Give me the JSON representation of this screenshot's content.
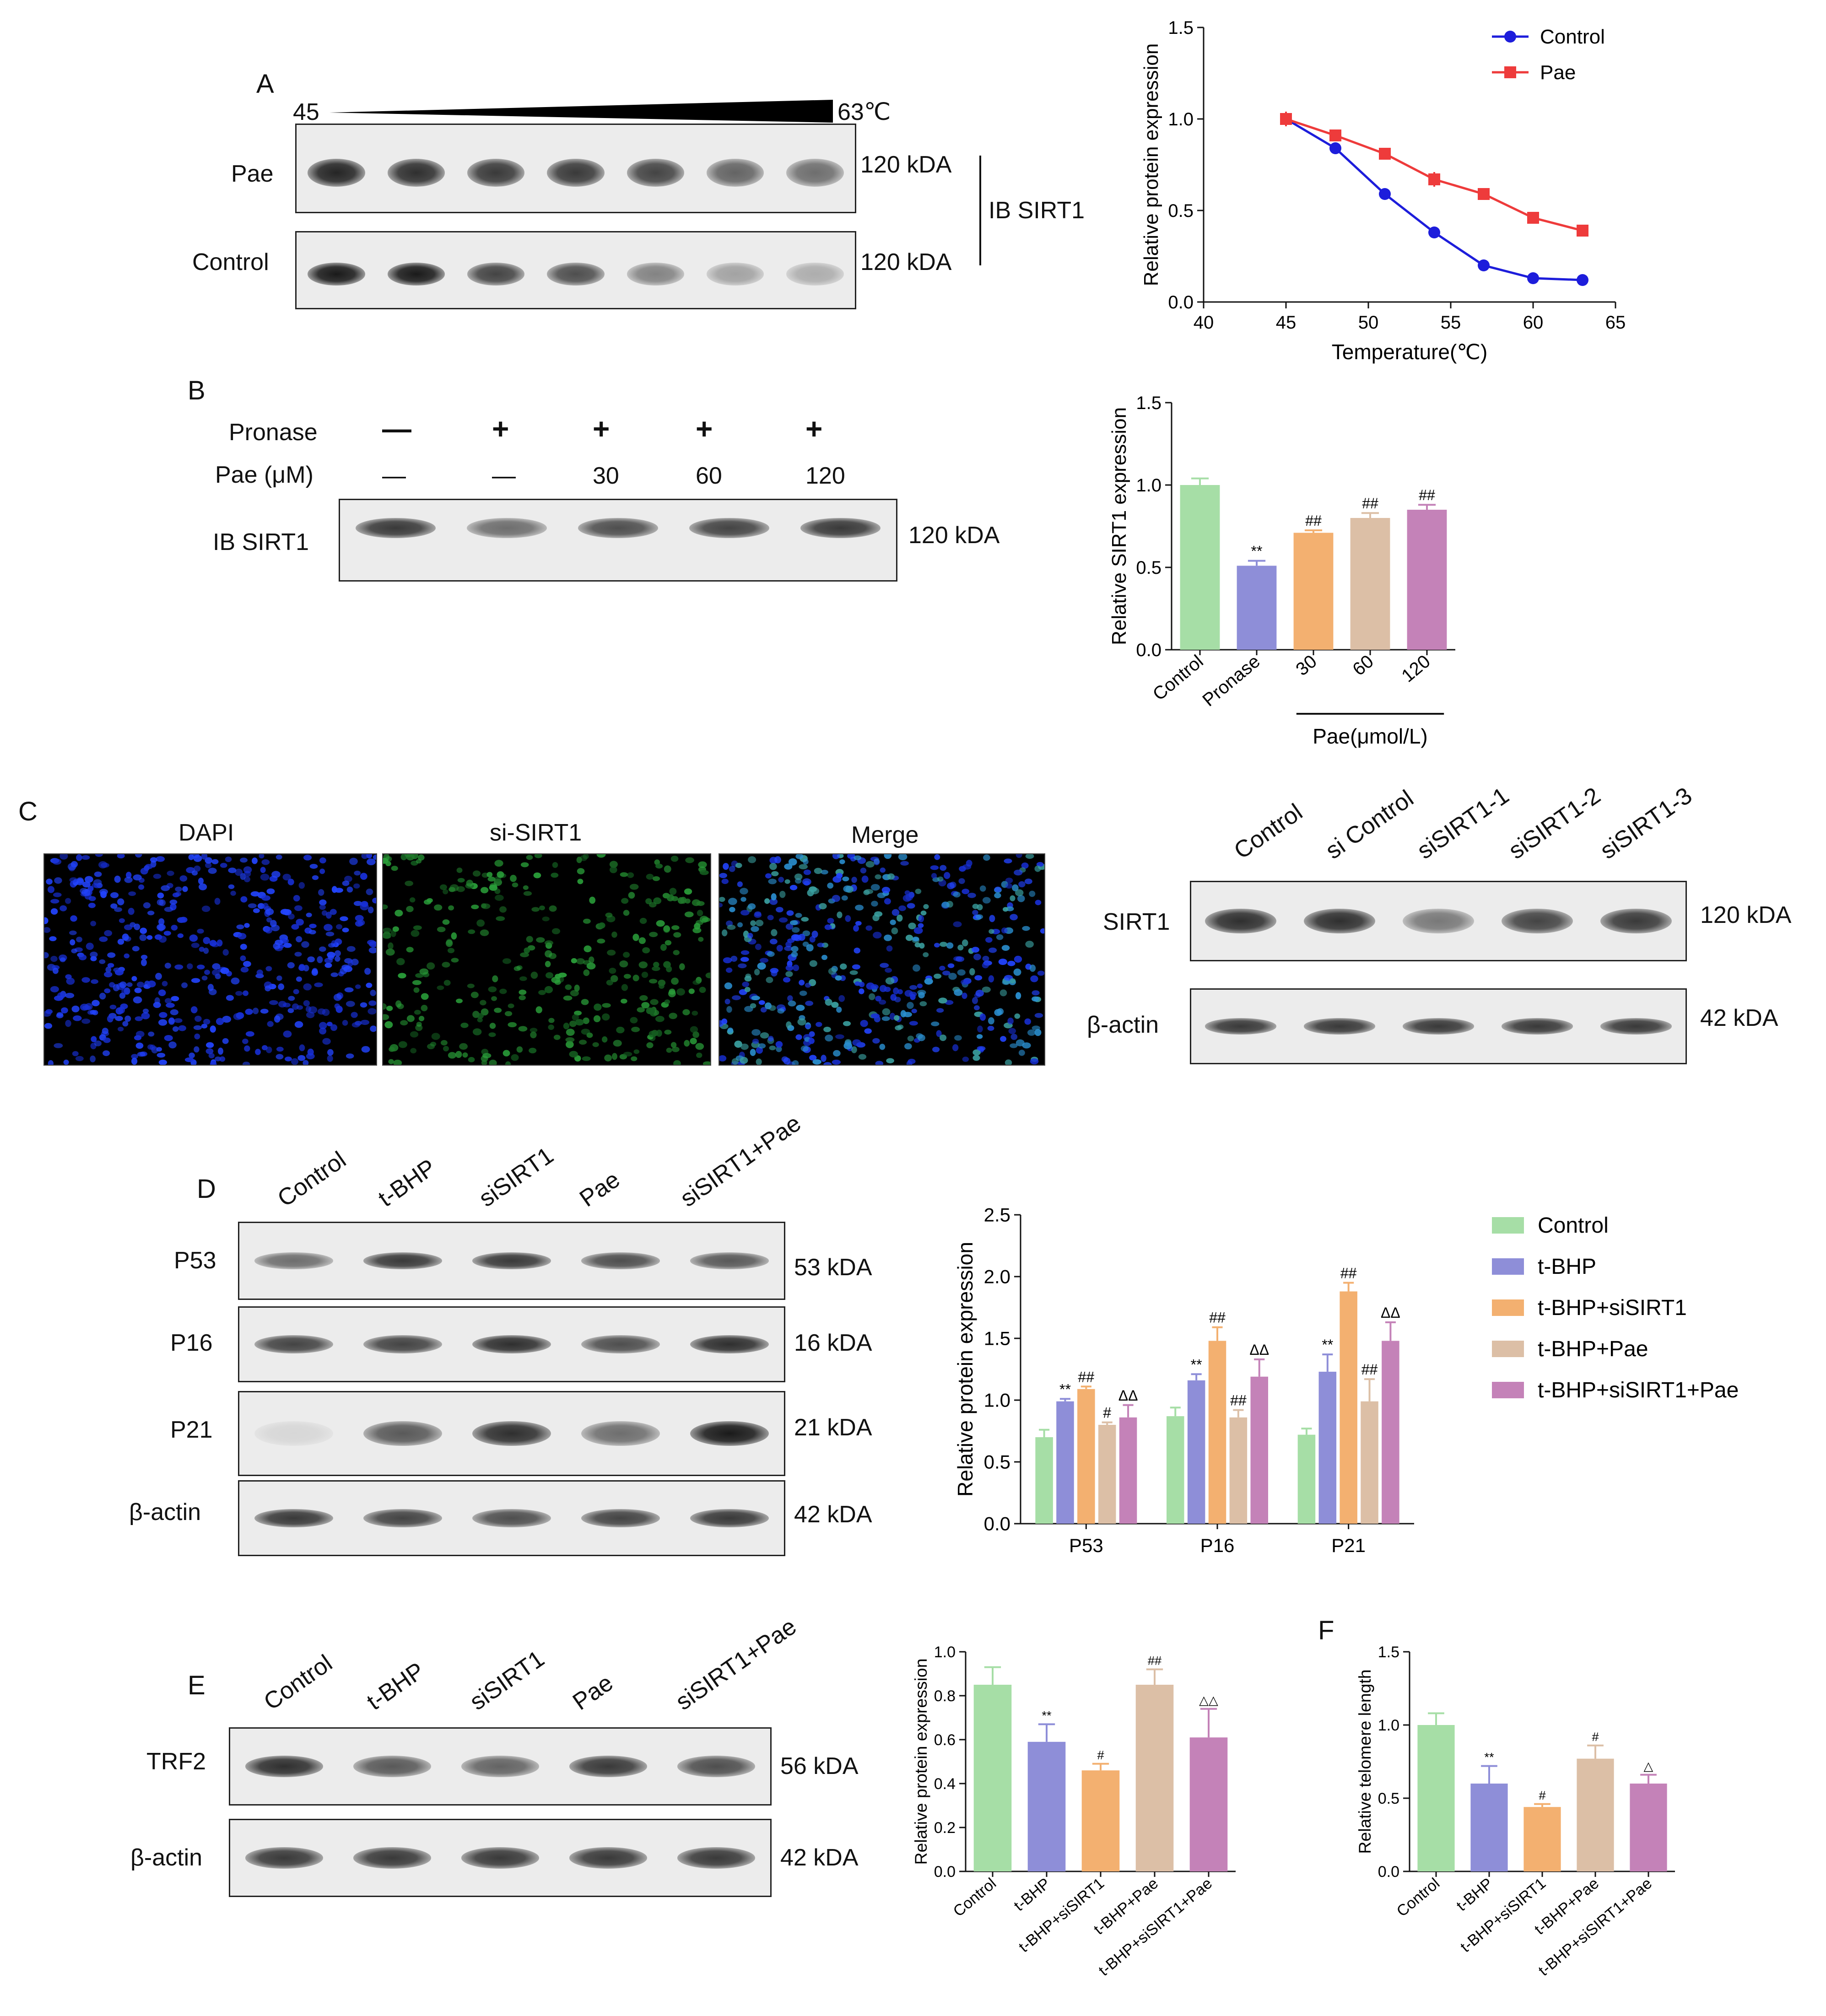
{
  "panelA": {
    "letter": "A",
    "temp_start": "45",
    "temp_end": "63℃",
    "rows": [
      "Pae",
      "Control"
    ],
    "kda": [
      "120 kDA",
      "120 kDA"
    ],
    "ib_label": "IB SIRT1",
    "lanes": 7,
    "band_intensity": {
      "Pae": [
        0.95,
        0.9,
        0.85,
        0.85,
        0.8,
        0.65,
        0.6
      ],
      "Control": [
        1.0,
        1.0,
        0.8,
        0.75,
        0.5,
        0.35,
        0.3
      ]
    }
  },
  "panelB": {
    "letter": "B",
    "row1_label": "Pronase",
    "row1_values": [
      "—",
      "+",
      "+",
      "+",
      "+"
    ],
    "row2_label": "Pae (μM)",
    "row2_values": [
      "—",
      "—",
      "30",
      "60",
      "120"
    ],
    "ib_label": "IB SIRT1",
    "kda": "120 kDA",
    "band_intensity": [
      0.85,
      0.6,
      0.75,
      0.8,
      0.85
    ]
  },
  "panelC": {
    "letter": "C",
    "micro_titles": [
      "DAPI",
      "si-SIRT1",
      "Merge"
    ],
    "lane_labels": [
      "Control",
      "si Control",
      "siSIRT1-1",
      "siSIRT1-2",
      "siSIRT1-3"
    ],
    "rows": [
      "SIRT1",
      "β-actin"
    ],
    "kda": [
      "120 kDA",
      "42 kDA"
    ],
    "band_intensity": {
      "SIRT1": [
        0.9,
        0.9,
        0.55,
        0.8,
        0.85
      ],
      "actin": [
        0.85,
        0.85,
        0.85,
        0.85,
        0.85
      ]
    }
  },
  "panelD": {
    "letter": "D",
    "lane_labels": [
      "Control",
      "t-BHP",
      "siSIRT1",
      "Pae",
      "siSIRT1+Pae"
    ],
    "rows": [
      "P53",
      "P16",
      "P21",
      "β-actin"
    ],
    "kda": [
      "53 kDA",
      "16 kDA",
      "21 kDA",
      "42 kDA"
    ],
    "band_intensity": {
      "P53": [
        0.6,
        0.85,
        0.85,
        0.75,
        0.7
      ],
      "P16": [
        0.8,
        0.8,
        0.9,
        0.75,
        0.9
      ],
      "P21": [
        0.1,
        0.7,
        0.9,
        0.6,
        1.0
      ],
      "actin": [
        0.85,
        0.8,
        0.75,
        0.8,
        0.85
      ]
    }
  },
  "panelE": {
    "letter": "E",
    "lane_labels": [
      "Control",
      "t-BHP",
      "siSIRT1",
      "Pae",
      "siSIRT1+Pae"
    ],
    "rows": [
      "TRF2",
      "β-actin"
    ],
    "kda": [
      "56 kDA",
      "42 kDA"
    ],
    "band_intensity": {
      "TRF2": [
        0.9,
        0.7,
        0.65,
        0.85,
        0.75
      ],
      "actin": [
        0.85,
        0.85,
        0.85,
        0.85,
        0.85
      ]
    }
  },
  "panelF": {
    "letter": "F"
  },
  "chart_data": [
    {
      "id": "A-line",
      "type": "line",
      "x": [
        45,
        48,
        51,
        54,
        57,
        60,
        63
      ],
      "series": [
        {
          "name": "Control",
          "color": "#1d1ddb",
          "marker": "circle",
          "values": [
            1.0,
            0.84,
            0.59,
            0.38,
            0.2,
            0.13,
            0.12
          ],
          "err": [
            0.04,
            0.015,
            0.03,
            0.015,
            0.015,
            0.01,
            0.01
          ]
        },
        {
          "name": "Pae",
          "color": "#ee3b3b",
          "marker": "square",
          "values": [
            1.0,
            0.91,
            0.81,
            0.67,
            0.59,
            0.46,
            0.39
          ],
          "err": [
            0.04,
            0.015,
            0.02,
            0.04,
            0.03,
            0.02,
            0.03
          ]
        }
      ],
      "xlabel": "Temperature(℃)",
      "ylabel": "Relative protein expression",
      "xlim": [
        40,
        65
      ],
      "ylim": [
        0,
        1.5
      ],
      "xticks": [
        "40",
        "45",
        "50",
        "55",
        "60",
        "65"
      ],
      "yticks": [
        "0.0",
        "0.5",
        "1.0",
        "1.5"
      ],
      "legend": "top-right"
    },
    {
      "id": "B-bar",
      "type": "bar",
      "categories": [
        "Control",
        "Pronase",
        "30",
        "60",
        "120"
      ],
      "values": [
        1.0,
        0.51,
        0.71,
        0.8,
        0.85
      ],
      "err": [
        0.04,
        0.03,
        0.015,
        0.03,
        0.03
      ],
      "colors": [
        "#a6dea6",
        "#8e8ed8",
        "#f3b070",
        "#dcbfa6",
        "#c482b8"
      ],
      "sig": [
        "",
        "**",
        "##",
        "##",
        "##"
      ],
      "ylabel": "Relative SIRT1 expression",
      "group_label": "Pae(μmol/L)",
      "ylim": [
        0,
        1.5
      ],
      "yticks": [
        "0.0",
        "0.5",
        "1.0",
        "1.5"
      ]
    },
    {
      "id": "D-bar",
      "type": "bar",
      "categories": [
        "P53",
        "P16",
        "P21"
      ],
      "series": [
        {
          "name": "Control",
          "color": "#a6dea6",
          "values": [
            0.7,
            0.87,
            0.72
          ],
          "err": [
            0.06,
            0.07,
            0.05
          ],
          "sig": [
            "",
            "",
            ""
          ]
        },
        {
          "name": "t-BHP",
          "color": "#8e8ed8",
          "values": [
            0.99,
            1.16,
            1.23
          ],
          "err": [
            0.02,
            0.05,
            0.14
          ],
          "sig": [
            "**",
            "**",
            "**"
          ]
        },
        {
          "name": "t-BHP+siSIRT1",
          "color": "#f3b070",
          "values": [
            1.09,
            1.48,
            1.88
          ],
          "err": [
            0.02,
            0.11,
            0.07
          ],
          "sig": [
            "##",
            "##",
            "##"
          ]
        },
        {
          "name": "t-BHP+Pae",
          "color": "#dcbfa6",
          "values": [
            0.8,
            0.86,
            0.99
          ],
          "err": [
            0.02,
            0.06,
            0.18
          ],
          "sig": [
            "#",
            "##",
            "##"
          ]
        },
        {
          "name": "t-BHP+siSIRT1+Pae",
          "color": "#c482b8",
          "values": [
            0.86,
            1.19,
            1.48
          ],
          "err": [
            0.1,
            0.14,
            0.15
          ],
          "sig": [
            "ΔΔ",
            "ΔΔ",
            "ΔΔ"
          ]
        }
      ],
      "ylabel": "Relative protein expression",
      "ylim": [
        0,
        2.5
      ],
      "yticks": [
        "0.0",
        "0.5",
        "1.0",
        "1.5",
        "2.0",
        "2.5"
      ],
      "legend": "right"
    },
    {
      "id": "E-bar",
      "type": "bar",
      "categories": [
        "Control",
        "t-BHP",
        "t-BHP+siSIRT1",
        "t-BHP+Pae",
        "t-BHP+siSIRT1+Pae"
      ],
      "values": [
        0.85,
        0.59,
        0.46,
        0.85,
        0.61
      ],
      "err": [
        0.08,
        0.08,
        0.03,
        0.07,
        0.13
      ],
      "colors": [
        "#a6dea6",
        "#8e8ed8",
        "#f3b070",
        "#dcbfa6",
        "#c482b8"
      ],
      "sig": [
        "",
        "**",
        "#",
        "##",
        "△△"
      ],
      "ylabel": "Relative protein expression",
      "ylim": [
        0,
        1.0
      ],
      "yticks": [
        "0.0",
        "0.2",
        "0.4",
        "0.6",
        "0.8",
        "1.0"
      ]
    },
    {
      "id": "F-bar",
      "type": "bar",
      "categories": [
        "Control",
        "t-BHP",
        "t-BHP+siSIRT1",
        "t-BHP+Pae",
        "t-BHP+siSIRT1+Pae"
      ],
      "values": [
        1.0,
        0.6,
        0.44,
        0.77,
        0.6
      ],
      "err": [
        0.08,
        0.12,
        0.02,
        0.09,
        0.06
      ],
      "colors": [
        "#a6dea6",
        "#8e8ed8",
        "#f3b070",
        "#dcbfa6",
        "#c482b8"
      ],
      "sig": [
        "",
        "**",
        "#",
        "#",
        "△"
      ],
      "ylabel": "Relative telomere length",
      "ylim": [
        0,
        1.5
      ],
      "yticks": [
        "0.0",
        "0.5",
        "1.0",
        "1.5"
      ]
    }
  ]
}
